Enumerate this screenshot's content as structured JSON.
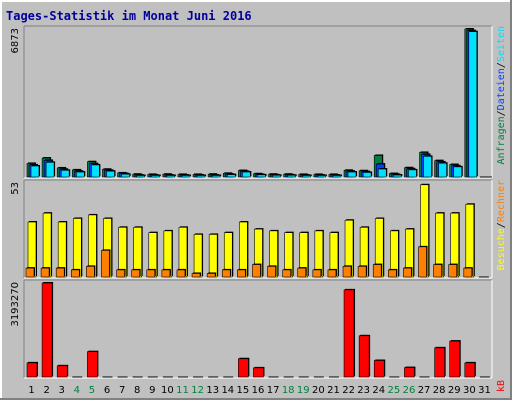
{
  "title": "Tages-Statistik im Monat Juni 2016",
  "legend": {
    "top": [
      "Anfragen",
      "/",
      "Dateien",
      "/",
      "Seiten"
    ],
    "middle": [
      "Besuche",
      "/",
      "Rechner"
    ],
    "bottom": [
      "kB"
    ]
  },
  "colors": {
    "anfragen": "#008040",
    "dateien": "#0040ff",
    "seiten": "#00e0ff",
    "besuche": "#ffff00",
    "rechner": "#ff8000",
    "kb": "#ff0000",
    "weekday_label": "#000000",
    "weekend_label": "#008040",
    "panel_bg": "#c0c0c0"
  },
  "chart_data": [
    {
      "type": "bar",
      "panel": "top",
      "ymax_label": "6873",
      "ylim": [
        0,
        6873
      ],
      "x": [
        1,
        2,
        3,
        4,
        5,
        6,
        7,
        8,
        9,
        10,
        11,
        12,
        13,
        14,
        15,
        16,
        17,
        18,
        19,
        20,
        21,
        22,
        23,
        24,
        25,
        26,
        27,
        28,
        29,
        30,
        31
      ],
      "series": [
        {
          "name": "Anfragen",
          "values": [
            630,
            880,
            420,
            330,
            710,
            360,
            190,
            130,
            120,
            130,
            120,
            120,
            130,
            170,
            300,
            150,
            130,
            130,
            120,
            120,
            120,
            310,
            290,
            1000,
            160,
            430,
            1140,
            760,
            580,
            6873,
            0
          ]
        },
        {
          "name": "Dateien",
          "values": [
            560,
            770,
            360,
            270,
            620,
            310,
            160,
            90,
            90,
            90,
            90,
            90,
            90,
            130,
            260,
            120,
            100,
            100,
            90,
            90,
            90,
            270,
            250,
            600,
            120,
            380,
            1050,
            700,
            520,
            6800,
            0
          ]
        },
        {
          "name": "Seiten",
          "values": [
            510,
            680,
            310,
            230,
            560,
            270,
            130,
            70,
            70,
            70,
            70,
            70,
            70,
            110,
            230,
            100,
            80,
            80,
            70,
            70,
            70,
            230,
            210,
            370,
            90,
            330,
            960,
            640,
            470,
            6750,
            0
          ]
        }
      ]
    },
    {
      "type": "bar",
      "panel": "middle",
      "ymax_label": "53",
      "ylim": [
        0,
        53
      ],
      "x": [
        1,
        2,
        3,
        4,
        5,
        6,
        7,
        8,
        9,
        10,
        11,
        12,
        13,
        14,
        15,
        16,
        17,
        18,
        19,
        20,
        21,
        22,
        23,
        24,
        25,
        26,
        27,
        28,
        29,
        30,
        31
      ],
      "series": [
        {
          "name": "Besuche",
          "values": [
            31,
            36,
            31,
            33,
            35,
            33,
            28,
            28,
            25,
            26,
            28,
            24,
            24,
            25,
            31,
            27,
            26,
            25,
            25,
            26,
            25,
            32,
            28,
            33,
            26,
            27,
            52,
            36,
            36,
            41,
            0
          ]
        },
        {
          "name": "Rechner",
          "values": [
            5,
            5,
            5,
            4,
            6,
            15,
            4,
            4,
            4,
            4,
            4,
            2,
            2,
            4,
            4,
            7,
            6,
            4,
            5,
            4,
            4,
            6,
            6,
            7,
            4,
            5,
            17,
            7,
            7,
            5,
            0
          ]
        }
      ]
    },
    {
      "type": "bar",
      "panel": "bottom",
      "ymax_label": "3193270",
      "ylim": [
        0,
        3193270
      ],
      "x": [
        1,
        2,
        3,
        4,
        5,
        6,
        7,
        8,
        9,
        10,
        11,
        12,
        13,
        14,
        15,
        16,
        17,
        18,
        19,
        20,
        21,
        22,
        23,
        24,
        25,
        26,
        27,
        28,
        29,
        30,
        31
      ],
      "series": [
        {
          "name": "kB",
          "values": [
            480000,
            3193270,
            380000,
            0,
            860000,
            0,
            0,
            0,
            0,
            0,
            0,
            0,
            0,
            0,
            620000,
            310000,
            0,
            0,
            0,
            0,
            0,
            2960000,
            1400000,
            560000,
            0,
            320000,
            0,
            990000,
            1220000,
            480000,
            0
          ]
        }
      ]
    }
  ],
  "x_labels": [
    "1",
    "2",
    "3",
    "4",
    "5",
    "6",
    "7",
    "8",
    "9",
    "10",
    "11",
    "12",
    "13",
    "14",
    "15",
    "16",
    "17",
    "18",
    "19",
    "20",
    "21",
    "22",
    "23",
    "24",
    "25",
    "26",
    "27",
    "28",
    "29",
    "30",
    "31"
  ],
  "weekend_days": [
    4,
    5,
    11,
    12,
    18,
    19,
    25,
    26
  ]
}
